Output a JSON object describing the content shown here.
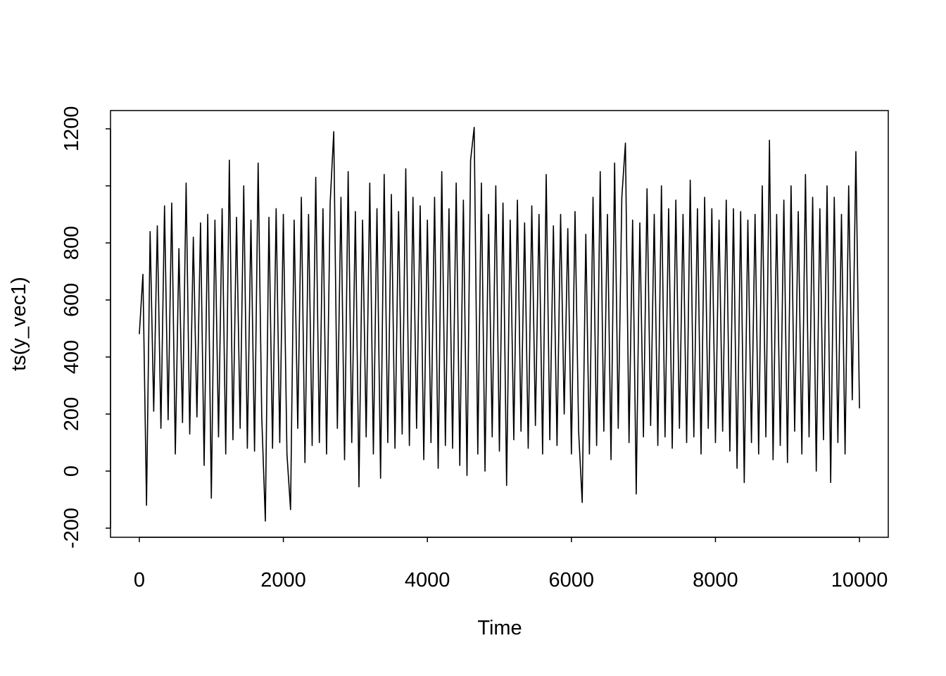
{
  "chart_data": {
    "type": "line",
    "x_label": "Time",
    "y_label": "ts(y_vec1)",
    "color": "#000000",
    "xlim": [
      -400,
      10400
    ],
    "ylim": [
      -232,
      1264
    ],
    "xticks": [
      0,
      2000,
      4000,
      6000,
      8000,
      10000
    ],
    "yticks": [
      -200,
      0,
      200,
      400,
      600,
      800,
      {
        "value": 1000,
        "label": null
      },
      1200
    ],
    "x": [
      0,
      50,
      100,
      150,
      200,
      250,
      300,
      350,
      400,
      450,
      500,
      550,
      600,
      650,
      700,
      750,
      800,
      850,
      900,
      950,
      1000,
      1050,
      1100,
      1150,
      1200,
      1250,
      1300,
      1350,
      1400,
      1450,
      1500,
      1550,
      1600,
      1650,
      1700,
      1750,
      1800,
      1850,
      1900,
      1950,
      2000,
      2050,
      2100,
      2150,
      2200,
      2250,
      2300,
      2350,
      2400,
      2450,
      2500,
      2550,
      2600,
      2650,
      2700,
      2750,
      2800,
      2850,
      2900,
      2950,
      3000,
      3050,
      3100,
      3150,
      3200,
      3250,
      3300,
      3350,
      3400,
      3450,
      3500,
      3550,
      3600,
      3650,
      3700,
      3750,
      3800,
      3850,
      3900,
      3950,
      4000,
      4050,
      4100,
      4150,
      4200,
      4250,
      4300,
      4350,
      4400,
      4450,
      4500,
      4550,
      4600,
      4650,
      4700,
      4750,
      4800,
      4850,
      4900,
      4950,
      5000,
      5050,
      5100,
      5150,
      5200,
      5250,
      5300,
      5350,
      5400,
      5450,
      5500,
      5550,
      5600,
      5650,
      5700,
      5750,
      5800,
      5850,
      5900,
      5950,
      6000,
      6050,
      6100,
      6150,
      6200,
      6250,
      6300,
      6350,
      6400,
      6450,
      6500,
      6550,
      6600,
      6650,
      6700,
      6750,
      6800,
      6850,
      6900,
      6950,
      7000,
      7050,
      7100,
      7150,
      7200,
      7250,
      7300,
      7350,
      7400,
      7450,
      7500,
      7550,
      7600,
      7650,
      7700,
      7750,
      7800,
      7850,
      7900,
      7950,
      8000,
      8050,
      8100,
      8150,
      8200,
      8250,
      8300,
      8350,
      8400,
      8450,
      8500,
      8550,
      8600,
      8650,
      8700,
      8750,
      8800,
      8850,
      8900,
      8950,
      9000,
      9050,
      9100,
      9150,
      9200,
      9250,
      9300,
      9350,
      9400,
      9450,
      9500,
      9550,
      9600,
      9650,
      9700,
      9750,
      9800,
      9850,
      9900,
      9950,
      10000
    ],
    "values": [
      480,
      690,
      -120,
      840,
      210,
      860,
      150,
      930,
      180,
      940,
      60,
      780,
      170,
      1010,
      130,
      820,
      190,
      870,
      20,
      900,
      -95,
      880,
      120,
      920,
      60,
      1090,
      110,
      890,
      150,
      1000,
      80,
      880,
      70,
      1080,
      190,
      -175,
      890,
      80,
      920,
      100,
      900,
      60,
      -135,
      880,
      150,
      960,
      30,
      900,
      90,
      1030,
      100,
      920,
      60,
      940,
      1190,
      150,
      960,
      40,
      1050,
      100,
      910,
      -55,
      880,
      120,
      1010,
      60,
      920,
      -25,
      1040,
      100,
      970,
      80,
      910,
      130,
      1060,
      90,
      960,
      150,
      930,
      40,
      880,
      100,
      960,
      10,
      1050,
      90,
      920,
      80,
      1010,
      20,
      950,
      -15,
      1090,
      1205,
      60,
      1010,
      0,
      900,
      120,
      1000,
      70,
      940,
      -50,
      880,
      110,
      950,
      140,
      870,
      80,
      930,
      160,
      900,
      60,
      1040,
      110,
      860,
      90,
      900,
      200,
      850,
      60,
      910,
      140,
      -110,
      830,
      60,
      960,
      90,
      1050,
      140,
      900,
      40,
      1080,
      150,
      960,
      1150,
      100,
      880,
      -80,
      870,
      120,
      990,
      160,
      900,
      90,
      1000,
      120,
      920,
      80,
      950,
      150,
      900,
      100,
      1020,
      120,
      920,
      60,
      960,
      150,
      920,
      100,
      880,
      140,
      950,
      70,
      920,
      10,
      910,
      -40,
      880,
      100,
      900,
      60,
      1000,
      120,
      1160,
      40,
      900,
      90,
      950,
      30,
      1000,
      140,
      910,
      60,
      1040,
      120,
      960,
      0,
      920,
      110,
      1000,
      -40,
      960,
      100,
      900,
      60,
      1000,
      250,
      1120,
      220
    ]
  }
}
